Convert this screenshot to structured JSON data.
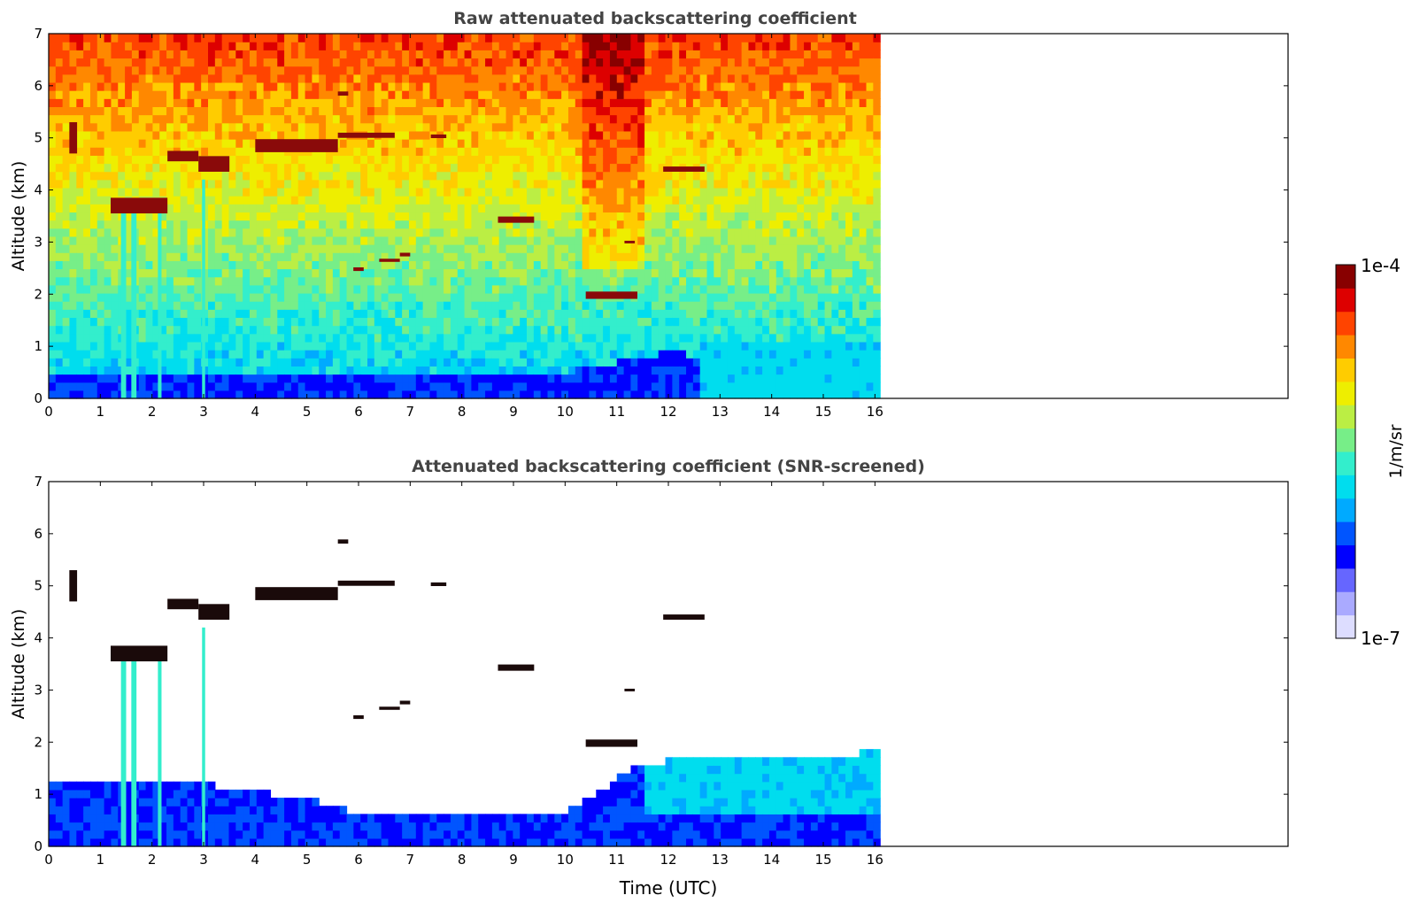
{
  "chart_data": [
    {
      "type": "heatmap",
      "title": "Raw attenuated backscattering coefficient",
      "xlabel": "",
      "ylabel": "Altitude (km)",
      "xlim": [
        0,
        24
      ],
      "ylim": [
        0,
        7
      ],
      "x_ticks": [
        "0",
        "1",
        "2",
        "3",
        "4",
        "5",
        "6",
        "7",
        "8",
        "9",
        "10",
        "11",
        "12",
        "13",
        "14",
        "15",
        "16"
      ],
      "y_ticks": [
        "0",
        "1",
        "2",
        "3",
        "4",
        "5",
        "6",
        "7"
      ],
      "data_extent_hours": 16.1,
      "cloud_layers": [
        {
          "t0": 0.4,
          "t1": 0.55,
          "alt": 5.0,
          "thick": 0.6
        },
        {
          "t0": 1.2,
          "t1": 2.3,
          "alt": 3.7,
          "thick": 0.3
        },
        {
          "t0": 2.3,
          "t1": 2.9,
          "alt": 4.65,
          "thick": 0.2
        },
        {
          "t0": 2.9,
          "t1": 3.5,
          "alt": 4.5,
          "thick": 0.3
        },
        {
          "t0": 4.0,
          "t1": 5.6,
          "alt": 4.85,
          "thick": 0.25
        },
        {
          "t0": 5.6,
          "t1": 6.7,
          "alt": 5.05,
          "thick": 0.1
        },
        {
          "t0": 7.4,
          "t1": 7.7,
          "alt": 5.03,
          "thick": 0.07
        },
        {
          "t0": 5.6,
          "t1": 5.8,
          "alt": 5.85,
          "thick": 0.08
        },
        {
          "t0": 5.9,
          "t1": 6.1,
          "alt": 2.48,
          "thick": 0.07
        },
        {
          "t0": 6.4,
          "t1": 6.8,
          "alt": 2.65,
          "thick": 0.06
        },
        {
          "t0": 6.8,
          "t1": 7.0,
          "alt": 2.76,
          "thick": 0.07
        },
        {
          "t0": 8.7,
          "t1": 9.4,
          "alt": 3.43,
          "thick": 0.12
        },
        {
          "t0": 11.15,
          "t1": 11.35,
          "alt": 3.0,
          "thick": 0.05
        },
        {
          "t0": 10.4,
          "t1": 11.4,
          "alt": 1.98,
          "thick": 0.14
        },
        {
          "t0": 11.9,
          "t1": 12.7,
          "alt": 4.4,
          "thick": 0.1
        }
      ],
      "precipitation_shafts": [
        {
          "t": 1.45,
          "top": 3.8,
          "width": 0.1
        },
        {
          "t": 1.65,
          "top": 3.8,
          "width": 0.1
        },
        {
          "t": 2.15,
          "top": 3.7,
          "width": 0.07
        },
        {
          "t": 3.0,
          "top": 4.2,
          "width": 0.06
        }
      ],
      "boundary_layer": [
        {
          "t": 0,
          "top": 0.5
        },
        {
          "t": 10,
          "top": 0.5
        },
        {
          "t": 12,
          "top": 0.9
        },
        {
          "t": 13,
          "top": 0.75
        },
        {
          "t": 14,
          "top": 0.55
        },
        {
          "t": 16.1,
          "top": 0.4
        }
      ]
    },
    {
      "type": "heatmap",
      "title": "Attenuated backscattering coefficient (SNR-screened)",
      "xlabel": "Time (UTC)",
      "ylabel": "Altitude (km)",
      "xlim": [
        0,
        24
      ],
      "ylim": [
        0,
        7
      ],
      "x_ticks": [
        "0",
        "1",
        "2",
        "3",
        "4",
        "5",
        "6",
        "7",
        "8",
        "9",
        "10",
        "11",
        "12",
        "13",
        "14",
        "15",
        "16"
      ],
      "y_ticks": [
        "0",
        "1",
        "2",
        "3",
        "4",
        "5",
        "6",
        "7"
      ],
      "data_extent_hours": 16.1,
      "boundary_layer_screened": [
        {
          "t": 0,
          "top": 1.3
        },
        {
          "t": 3,
          "top": 1.2
        },
        {
          "t": 5,
          "top": 0.9
        },
        {
          "t": 6,
          "top": 0.65
        },
        {
          "t": 8,
          "top": 0.7
        },
        {
          "t": 10,
          "top": 0.65
        },
        {
          "t": 11.5,
          "top": 1.6
        },
        {
          "t": 13,
          "top": 1.7
        },
        {
          "t": 16.1,
          "top": 1.8
        }
      ]
    }
  ],
  "colorbar": {
    "label": "1/m/sr",
    "min_label": "1e-7",
    "max_label": "1e-4",
    "colors": [
      "#ddddff",
      "#aaaaff",
      "#6666ff",
      "#0000ff",
      "#0055ff",
      "#00aaff",
      "#00ddee",
      "#33eecc",
      "#77ee88",
      "#bbee44",
      "#eeee00",
      "#ffcc00",
      "#ff8800",
      "#ff4400",
      "#dd0000",
      "#880000"
    ]
  }
}
